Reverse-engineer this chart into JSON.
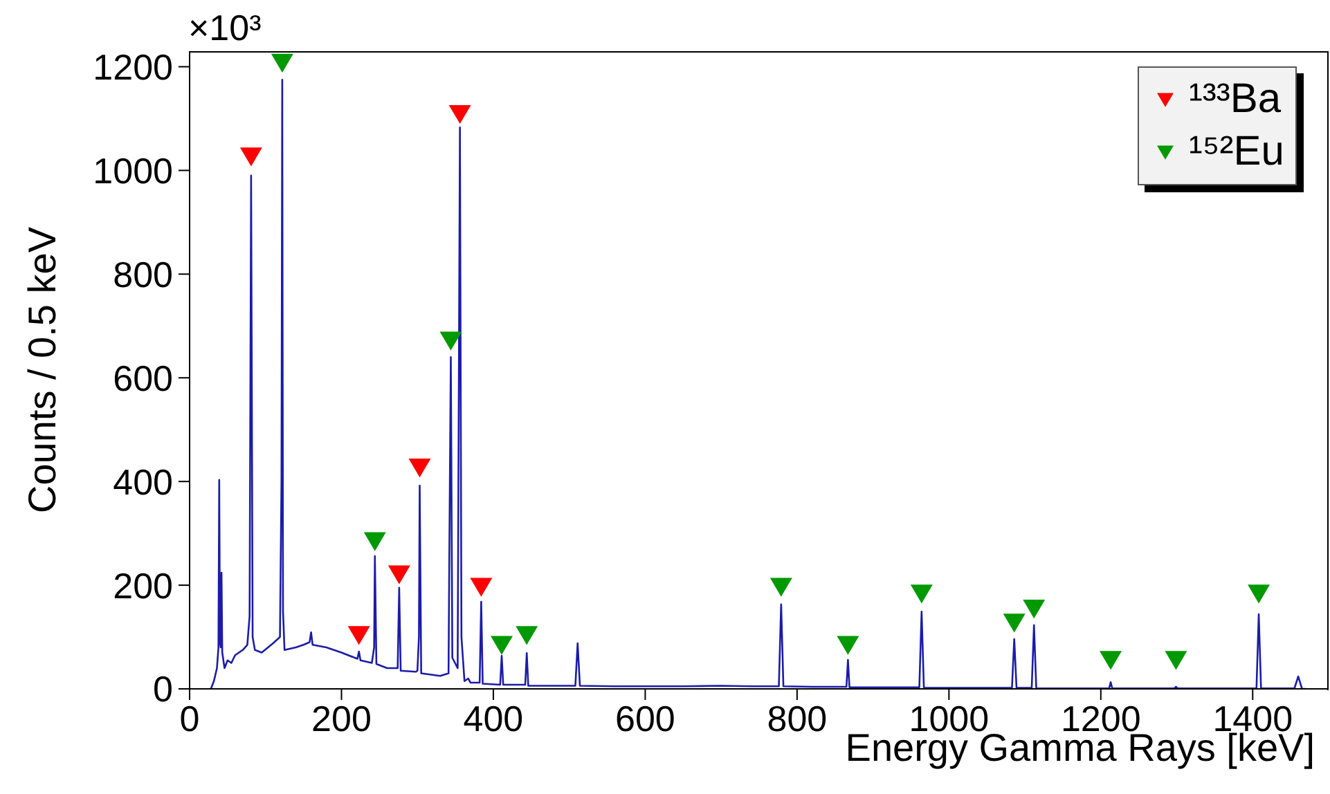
{
  "chart_data": {
    "type": "line",
    "xlabel": "Energy Gamma Rays [keV]",
    "ylabel": "Counts / 0.5 keV",
    "annotations": [
      "×10³"
    ],
    "xlim": [
      0,
      1500
    ],
    "xticks": [
      0,
      200,
      400,
      600,
      800,
      1000,
      1200,
      1400
    ],
    "ylim": [
      0,
      1230
    ],
    "yticks": [
      0,
      200,
      400,
      600,
      800,
      1000,
      1200
    ],
    "grid": false,
    "legend": "top right",
    "line_style": "solid",
    "series": [
      {
        "color": "#1c1ca8",
        "marker": "none",
        "x": [
          28,
          32,
          36,
          38,
          39,
          40,
          41,
          42,
          43,
          46,
          50,
          55,
          60,
          70,
          76,
          79,
          81,
          83,
          86,
          95,
          110,
          119,
          121,
          122,
          123,
          125,
          140,
          150,
          158,
          160,
          162,
          180,
          200,
          221,
          223,
          225,
          240,
          243,
          244,
          246,
          260,
          274,
          276,
          278,
          298,
          300,
          302,
          303,
          305,
          330,
          341,
          342,
          344,
          346,
          353,
          356,
          358,
          362,
          367,
          370,
          382,
          384,
          386,
          409,
          411,
          413,
          442,
          444,
          446,
          480,
          508,
          511,
          514,
          560,
          600,
          650,
          700,
          740,
          776,
          779,
          782,
          820,
          865,
          867,
          869,
          920,
          961,
          964,
          967,
          1000,
          1083,
          1086,
          1089,
          1109,
          1112,
          1115,
          1150,
          1211,
          1213,
          1215,
          1297,
          1299,
          1301,
          1350,
          1405,
          1408,
          1411,
          1455,
          1460,
          1465,
          1470
        ],
        "values": [
          0,
          15,
          40,
          80,
          403,
          90,
          80,
          224,
          70,
          40,
          55,
          50,
          65,
          75,
          85,
          140,
          990,
          100,
          75,
          70,
          88,
          100,
          400,
          1175,
          150,
          75,
          80,
          85,
          90,
          109,
          85,
          80,
          70,
          58,
          72,
          55,
          50,
          80,
          256,
          48,
          40,
          40,
          195,
          35,
          33,
          35,
          100,
          392,
          30,
          25,
          30,
          250,
          640,
          60,
          40,
          1083,
          100,
          15,
          20,
          12,
          12,
          168,
          10,
          8,
          64,
          8,
          8,
          69,
          6,
          6,
          6,
          88,
          6,
          5,
          5,
          5,
          6,
          5,
          5,
          163,
          5,
          4,
          4,
          56,
          3,
          3,
          3,
          149,
          2,
          2,
          2,
          96,
          2,
          2,
          123,
          1,
          1,
          1,
          13,
          1,
          1,
          4,
          1,
          1,
          1,
          144,
          1,
          1,
          24,
          0,
          0
        ]
      },
      {
        "type": "scatter",
        "name": "¹³³Ba",
        "color": "#ff0000",
        "marker": "triangle",
        "x": [
          81,
          223,
          276,
          303,
          356,
          384
        ],
        "values": [
          1027,
          104,
          221,
          427,
          1109,
          197
        ]
      },
      {
        "type": "scatter",
        "name": "¹⁵²Eu",
        "color": "#009900",
        "marker": "triangle",
        "x": [
          122,
          244,
          344,
          411,
          444,
          779,
          867,
          964,
          1086,
          1112,
          1213,
          1299,
          1408
        ],
        "values": [
          1208,
          285,
          672,
          85,
          104,
          197,
          85,
          184,
          128,
          155,
          56,
          56,
          184
        ]
      }
    ]
  }
}
